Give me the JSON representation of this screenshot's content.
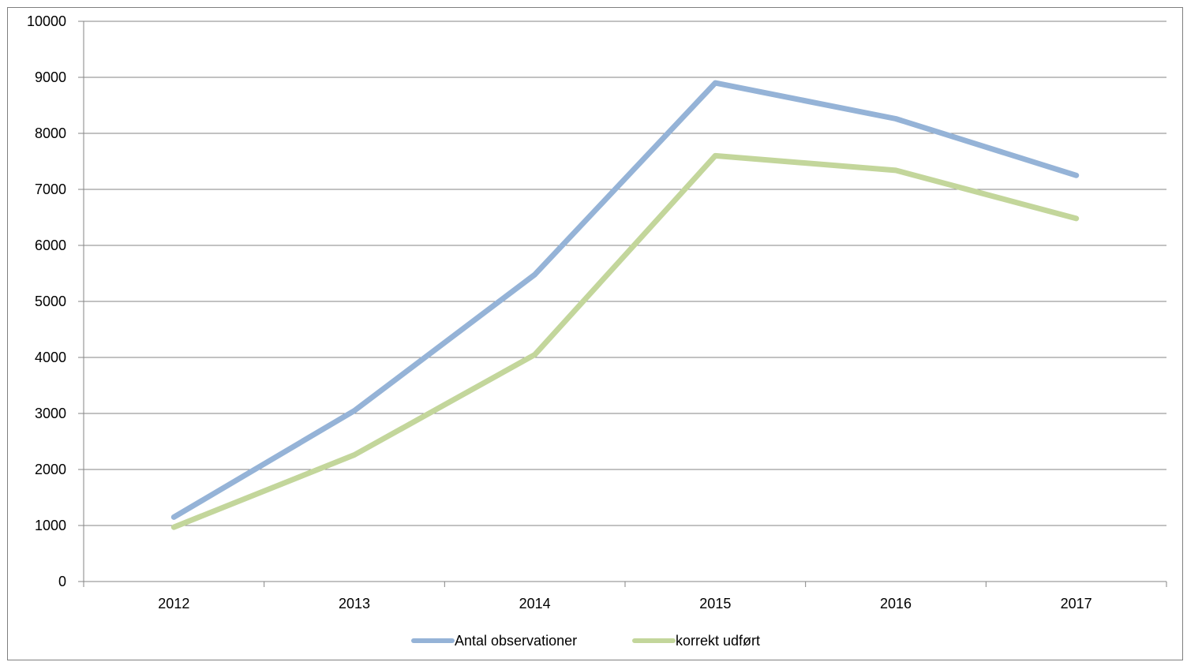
{
  "chart_data": {
    "type": "line",
    "title": "",
    "xlabel": "",
    "ylabel": "",
    "categories": [
      "2012",
      "2013",
      "2014",
      "2015",
      "2016",
      "2017"
    ],
    "ylim": [
      0,
      10000
    ],
    "yticks": [
      "0",
      "1000",
      "2000",
      "3000",
      "4000",
      "5000",
      "6000",
      "7000",
      "8000",
      "9000",
      "10000"
    ],
    "grid": true,
    "legend_position": "bottom",
    "series": [
      {
        "name": "Antal observationer",
        "color": "#95b3d7",
        "values": [
          1150,
          3050,
          5480,
          8900,
          8260,
          7250
        ]
      },
      {
        "name": "korrekt udført",
        "color": "#c3d69b",
        "values": [
          970,
          2260,
          4050,
          7600,
          7340,
          6480
        ]
      }
    ]
  }
}
